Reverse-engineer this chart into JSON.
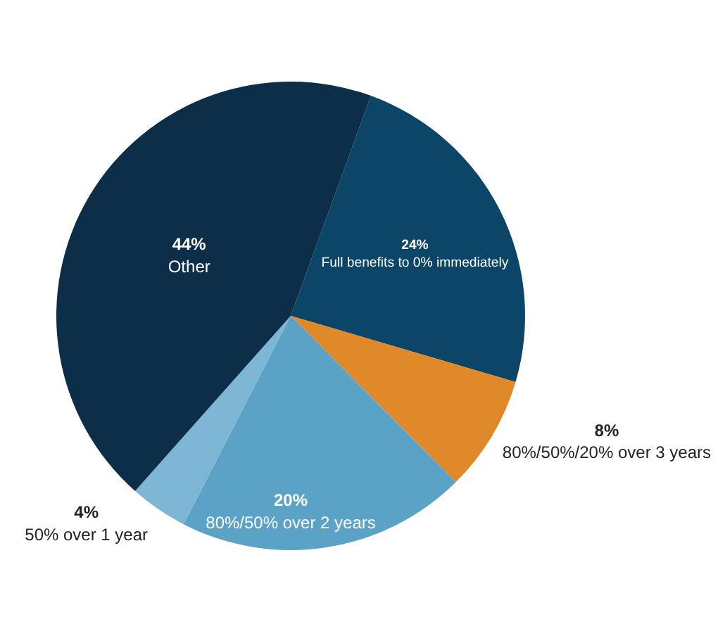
{
  "chart_data": {
    "type": "pie",
    "categories": [
      "Full benefits to 0% immediately",
      "80%/50%/20% over 3 years",
      "80%/50% over 2 years",
      "50% over 1 year",
      "Other"
    ],
    "values": [
      24,
      8,
      20,
      4,
      44
    ],
    "colors": [
      "#0b4567",
      "#e0892b",
      "#5aa2c6",
      "#7db5d5",
      "#0c2e48"
    ],
    "value_labels": [
      "24%",
      "8%",
      "20%",
      "4%",
      "44%"
    ],
    "legend": false
  }
}
